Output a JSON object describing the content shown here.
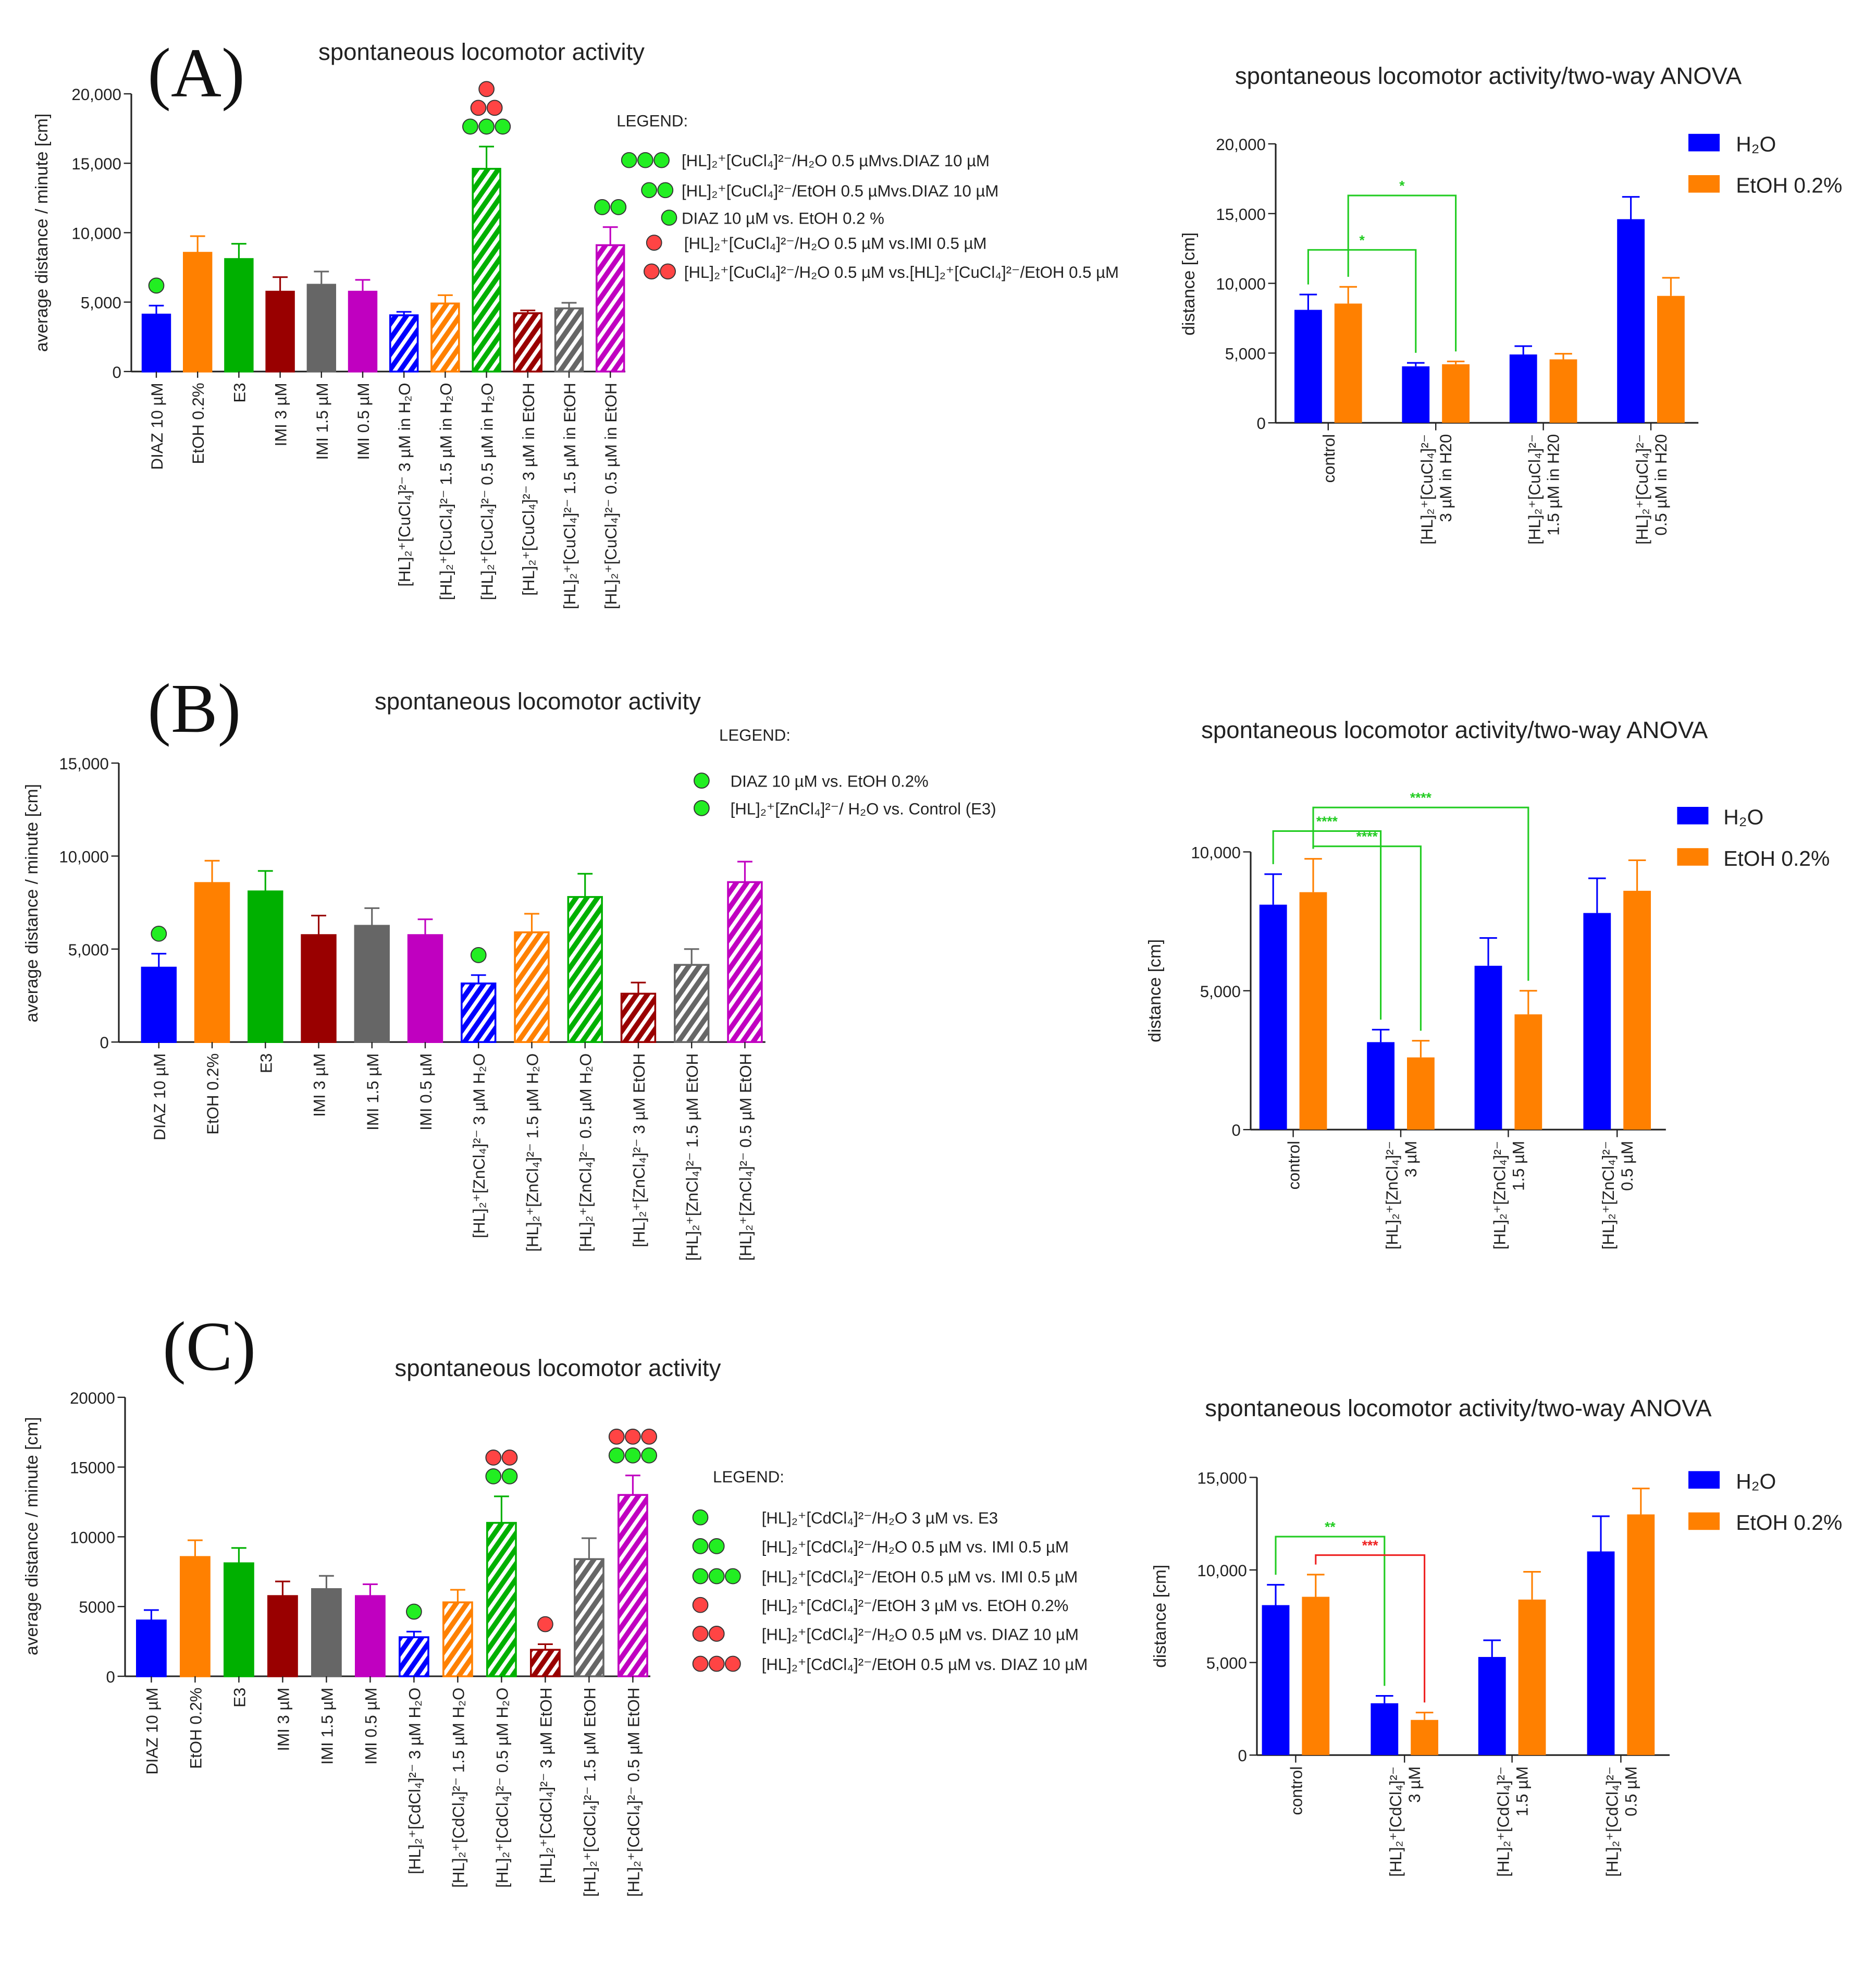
{
  "panels": [
    {
      "letter": "(A)"
    },
    {
      "letter": "(B)"
    },
    {
      "letter": "(C)"
    }
  ],
  "chart_data": [
    {
      "type": "bar",
      "title": "spontaneous locomotor activity",
      "xlabel": "",
      "ylabel": "average distance / minute [cm]",
      "ylim": [
        0,
        20000
      ],
      "yticks": [
        0,
        5000,
        10000,
        15000,
        20000
      ],
      "ytick_labels": [
        "0",
        "5,000",
        "10,000",
        "15,000",
        "20,000"
      ],
      "categories": [
        "DIAZ 10 µM",
        "EtOH 0.2%",
        "E3",
        "IMI 3 µM",
        "IMI 1.5 µM",
        "IMI 0.5 µM",
        "[HL]₂⁺[CuCl₄]²⁻ 3 µM in H₂O",
        "[HL]₂⁺[CuCl₄]²⁻ 1.5 µM in H₂O",
        "[HL]₂⁺[CuCl₄]²⁻ 0.5 µM in H₂O",
        "[HL]₂⁺[CuCl₄]²⁻ 3 µM in EtOH",
        "[HL]₂⁺[CuCl₄]²⁻ 1.5 µM in EtOH",
        "[HL]₂⁺[CuCl₄]²⁻ 0.5 µM in EtOH"
      ],
      "values": [
        4100,
        8550,
        8100,
        5750,
        6250,
        5750,
        4050,
        4900,
        14600,
        4200,
        4550,
        9100
      ],
      "error_tops": [
        4750,
        9750,
        9200,
        6800,
        7200,
        6600,
        4300,
        5500,
        16200,
        4400,
        4950,
        10400
      ],
      "colors": [
        "#0000ff",
        "#ff8000",
        "#00b000",
        "#990000",
        "#666666",
        "#c000c0",
        "#0000ff",
        "#ff8000",
        "#00b000",
        "#990000",
        "#666666",
        "#c000c0"
      ],
      "hatched": [
        false,
        false,
        false,
        false,
        false,
        false,
        true,
        true,
        true,
        true,
        true,
        true
      ],
      "markers": [
        [
          {
            "color": "green",
            "n": 1
          }
        ],
        [],
        [],
        [],
        [],
        [],
        [],
        [],
        [
          {
            "color": "green",
            "n": 3
          },
          {
            "color": "red",
            "n": 2
          },
          {
            "color": "red",
            "n": 1
          }
        ],
        [],
        [],
        [
          {
            "color": "green",
            "n": 2
          }
        ]
      ],
      "legend": {
        "title": "LEGEND:",
        "entries": [
          {
            "color": "green",
            "n": 3,
            "text": "[HL]₂⁺[CuCl₄]²⁻/H₂O 0.5 µMvs.DIAZ 10 µM"
          },
          {
            "color": "green",
            "n": 2,
            "text": "[HL]₂⁺[CuCl₄]²⁻/EtOH 0.5 µMvs.DIAZ 10 µM"
          },
          {
            "color": "green",
            "n": 1,
            "text": "DIAZ 10 µM vs. EtOH 0.2 %"
          },
          {
            "color": "red",
            "n": 1,
            "text": "[HL]₂⁺[CuCl₄]²⁻/H₂O 0.5 µM vs.IMI 0.5 µM"
          },
          {
            "color": "red",
            "n": 2,
            "text": "[HL]₂⁺[CuCl₄]²⁻/H₂O 0.5 µM vs.[HL]₂⁺[CuCl₄]²⁻/EtOH 0.5 µM"
          }
        ]
      }
    },
    {
      "type": "bar",
      "title": "spontaneous locomotor activity/two-way ANOVA",
      "xlabel": "",
      "ylabel": "distance [cm]",
      "ylim": [
        0,
        20000
      ],
      "yticks": [
        0,
        5000,
        10000,
        15000,
        20000
      ],
      "ytick_labels": [
        "0",
        "5,000",
        "10,000",
        "15,000",
        "20,000"
      ],
      "categories": [
        [
          "control"
        ],
        [
          "[HL]₂⁺[CuCl₄]²⁻",
          "3 µM in H20"
        ],
        [
          "[HL]₂⁺[CuCl₄]²⁻",
          "1.5 µM in H20"
        ],
        [
          "[HL]₂⁺[CuCl₄]²⁻",
          "0.5 µM in H20"
        ]
      ],
      "series": [
        {
          "name": "H₂O",
          "color": "#0000ff",
          "values": [
            8100,
            4050,
            4900,
            14600
          ],
          "error_tops": [
            9200,
            4300,
            5500,
            16200
          ]
        },
        {
          "name": "EtOH 0.2%",
          "color": "#ff8000",
          "values": [
            8550,
            4200,
            4550,
            9100
          ],
          "error_tops": [
            9750,
            4400,
            4950,
            10400
          ]
        }
      ],
      "legend_position": "top-right",
      "brackets": [
        {
          "from": [
            0,
            0
          ],
          "to": [
            1,
            0
          ],
          "level": 12400,
          "label": "*",
          "color": "#22cc22"
        },
        {
          "from": [
            0,
            1
          ],
          "to": [
            1,
            1
          ],
          "level": 16300,
          "label": "*",
          "color": "#22cc22"
        }
      ]
    },
    {
      "type": "bar",
      "title": "spontaneous locomotor activity",
      "xlabel": "",
      "ylabel": "average distance / minute [cm]",
      "ylim": [
        0,
        15000
      ],
      "yticks": [
        0,
        5000,
        10000,
        15000
      ],
      "ytick_labels": [
        "0",
        "5,000",
        "10,000",
        "15,000"
      ],
      "categories": [
        "DIAZ 10 µM",
        "EtOH 0.2%",
        "E3",
        "IMI 3 µM",
        "IMI 1.5 µM",
        "IMI 0.5 µM",
        "[HL]₂⁺[ZnCl₄]²⁻ 3 µM H₂O",
        "[HL]₂⁺[ZnCl₄]²⁻ 1.5 µM H₂O",
        "[HL]₂⁺[ZnCl₄]²⁻ 0.5 µM H₂O",
        "[HL]₂⁺[ZnCl₄]²⁻ 3 µM EtOH",
        "[HL]₂⁺[ZnCl₄]²⁻ 1.5 µM EtOH",
        "[HL]₂⁺[ZnCl₄]²⁻ 0.5 µM EtOH"
      ],
      "values": [
        4000,
        8550,
        8100,
        5750,
        6250,
        5750,
        3150,
        5900,
        7800,
        2600,
        4150,
        8600
      ],
      "error_tops": [
        4750,
        9750,
        9200,
        6800,
        7200,
        6600,
        3600,
        6900,
        9050,
        3200,
        5000,
        9700
      ],
      "colors": [
        "#0000ff",
        "#ff8000",
        "#00b000",
        "#990000",
        "#666666",
        "#c000c0",
        "#0000ff",
        "#ff8000",
        "#00b000",
        "#990000",
        "#666666",
        "#c000c0"
      ],
      "hatched": [
        false,
        false,
        false,
        false,
        false,
        false,
        true,
        true,
        true,
        true,
        true,
        true
      ],
      "markers": [
        [
          {
            "color": "green",
            "n": 1
          }
        ],
        [],
        [],
        [],
        [],
        [],
        [
          {
            "color": "green",
            "n": 1
          }
        ],
        [],
        [],
        [],
        [],
        []
      ],
      "legend": {
        "title": "LEGEND:",
        "entries": [
          {
            "color": "green",
            "n": 1,
            "text": "DIAZ 10 µM vs. EtOH 0.2%"
          },
          {
            "color": "green",
            "n": 1,
            "text": "[HL]₂⁺[ZnCl₄]²⁻/ H₂O vs. Control (E3)"
          }
        ]
      }
    },
    {
      "type": "bar",
      "title": "spontaneous locomotor activity/two-way ANOVA",
      "xlabel": "",
      "ylabel": "distance [cm]",
      "ylim": [
        0,
        10000
      ],
      "yticks": [
        0,
        5000,
        10000
      ],
      "ytick_labels": [
        "0",
        "5,000",
        "10,000"
      ],
      "categories": [
        [
          "control"
        ],
        [
          "[HL]₂⁺[ZnCl₄]²⁻",
          "3 µM"
        ],
        [
          "[HL]₂⁺[ZnCl₄]²⁻",
          "1.5 µM"
        ],
        [
          "[HL]₂⁺[ZnCl₄]²⁻",
          "0.5 µM"
        ]
      ],
      "series": [
        {
          "name": "H₂O",
          "color": "#0000ff",
          "values": [
            8100,
            3150,
            5900,
            7800
          ],
          "error_tops": [
            9200,
            3600,
            6900,
            9050
          ]
        },
        {
          "name": "EtOH 0.2%",
          "color": "#ff8000",
          "values": [
            8550,
            2600,
            4150,
            8600
          ],
          "error_tops": [
            9750,
            3200,
            5000,
            9700
          ]
        }
      ],
      "legend_position": "top-right",
      "brackets": [
        {
          "from": [
            0,
            0
          ],
          "to": [
            1,
            0
          ],
          "level": 10750,
          "label": "****",
          "color": "#22cc22"
        },
        {
          "from": [
            0,
            1
          ],
          "to": [
            1,
            1
          ],
          "level": 10200,
          "label": "****",
          "color": "#22cc22"
        },
        {
          "from": [
            0,
            1
          ],
          "to": [
            2,
            1
          ],
          "level": 11600,
          "label": "****",
          "color": "#22cc22"
        }
      ]
    },
    {
      "type": "bar",
      "title": "spontaneous locomotor activity",
      "xlabel": "",
      "ylabel": "average distance / minute [cm]",
      "ylim": [
        0,
        20000
      ],
      "yticks": [
        0,
        5000,
        10000,
        15000,
        20000
      ],
      "ytick_labels": [
        "0",
        "5000",
        "10000",
        "15000",
        "20000"
      ],
      "categories": [
        "DIAZ 10 µM",
        "EtOH 0.2%",
        "E3",
        "IMI 3 µM",
        "IMI 1.5 µM",
        "IMI 0.5 µM",
        "[HL]₂⁺[CdCl₄]²⁻ 3 µM H₂O",
        "[HL]₂⁺[CdCl₄]²⁻ 1.5 µM H₂O",
        "[HL]₂⁺[CdCl₄]²⁻ 0.5 µM H₂O",
        "[HL]₂⁺[CdCl₄]²⁻ 3 µM EtOH",
        "[HL]₂⁺[CdCl₄]²⁻ 1.5 µM EtOH",
        "[HL]₂⁺[CdCl₄]²⁻ 0.5 µM EtOH"
      ],
      "values": [
        4000,
        8550,
        8100,
        5750,
        6250,
        5750,
        2800,
        5300,
        11000,
        1900,
        8400,
        13000
      ],
      "error_tops": [
        4750,
        9750,
        9200,
        6800,
        7200,
        6600,
        3200,
        6200,
        12900,
        2300,
        9900,
        14400
      ],
      "colors": [
        "#0000ff",
        "#ff8000",
        "#00b000",
        "#990000",
        "#666666",
        "#c000c0",
        "#0000ff",
        "#ff8000",
        "#00b000",
        "#990000",
        "#666666",
        "#c000c0"
      ],
      "hatched": [
        false,
        false,
        false,
        false,
        false,
        false,
        true,
        true,
        true,
        true,
        true,
        true
      ],
      "markers": [
        [],
        [],
        [],
        [],
        [],
        [],
        [
          {
            "color": "green",
            "n": 1
          }
        ],
        [],
        [
          {
            "color": "green",
            "n": 2
          },
          {
            "color": "red",
            "n": 2
          }
        ],
        [
          {
            "color": "red",
            "n": 1
          }
        ],
        [],
        [
          {
            "color": "green",
            "n": 3
          },
          {
            "color": "red",
            "n": 3
          }
        ]
      ],
      "legend": {
        "title": "LEGEND:",
        "entries": [
          {
            "color": "green",
            "n": 1,
            "text": "[HL]₂⁺[CdCl₄]²⁻/H₂O 3 µM vs. E3"
          },
          {
            "color": "green",
            "n": 2,
            "text": "[HL]₂⁺[CdCl₄]²⁻/H₂O 0.5 µM  vs. IMI 0.5 µM"
          },
          {
            "color": "green",
            "n": 3,
            "text": "[HL]₂⁺[CdCl₄]²⁻/EtOH 0.5 µM vs. IMI 0.5 µM"
          },
          {
            "color": "red",
            "n": 1,
            "text": "[HL]₂⁺[CdCl₄]²⁻/EtOH 3 µM vs. EtOH 0.2%"
          },
          {
            "color": "red",
            "n": 2,
            "text": "[HL]₂⁺[CdCl₄]²⁻/H₂O 0.5 µM vs. DIAZ 10 µM"
          },
          {
            "color": "red",
            "n": 3,
            "text": "[HL]₂⁺[CdCl₄]²⁻/EtOH 0.5 µM vs. DIAZ 10 µM"
          }
        ]
      }
    },
    {
      "type": "bar",
      "title": "spontaneous locomotor activity/two-way ANOVA",
      "xlabel": "",
      "ylabel": "distance [cm]",
      "ylim": [
        0,
        15000
      ],
      "yticks": [
        0,
        5000,
        10000,
        15000
      ],
      "ytick_labels": [
        "0",
        "5,000",
        "10,000",
        "15,000"
      ],
      "categories": [
        [
          "control"
        ],
        [
          "[HL]₂⁺[CdCl₄]²⁻",
          "3 µM"
        ],
        [
          "[HL]₂⁺[CdCl₄]²⁻",
          "1.5 µM"
        ],
        [
          "[HL]₂⁺[CdCl₄]²⁻",
          "0.5 µM"
        ]
      ],
      "series": [
        {
          "name": "H₂O",
          "color": "#0000ff",
          "values": [
            8100,
            2800,
            5300,
            11000
          ],
          "error_tops": [
            9200,
            3200,
            6200,
            12900
          ]
        },
        {
          "name": "EtOH 0.2%",
          "color": "#ff8000",
          "values": [
            8550,
            1900,
            8400,
            13000
          ],
          "error_tops": [
            9750,
            2300,
            9900,
            14400
          ]
        }
      ],
      "legend_position": "top-right",
      "brackets": [
        {
          "from": [
            0,
            0
          ],
          "to": [
            1,
            0
          ],
          "level": 11800,
          "label": "**",
          "color": "#22cc22"
        },
        {
          "from": [
            0,
            1
          ],
          "to": [
            1,
            1
          ],
          "level": 10800,
          "label": "***",
          "color": "#ee2222"
        }
      ]
    }
  ],
  "marker_colors": {
    "green": "#22ee22",
    "red": "#ff4444"
  }
}
